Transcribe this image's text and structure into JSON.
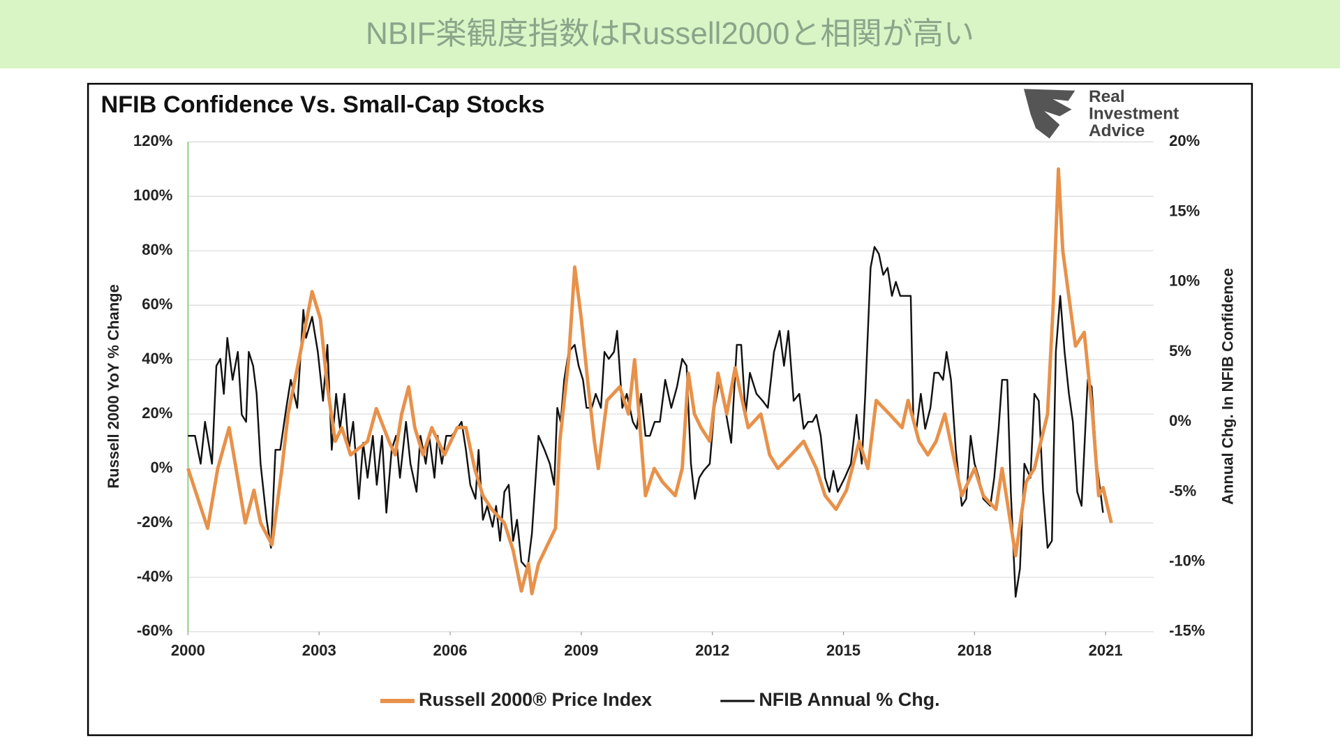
{
  "header": {
    "title": "NBIF楽観度指数はRussell2000と相関が高い"
  },
  "chart_data": {
    "type": "line",
    "title": "NFIB Confidence Vs. Small-Cap Stocks",
    "logo": [
      "Real",
      "Investment",
      "Advice"
    ],
    "y_label": "Russell 2000 YoY % Change",
    "y2_label": "Annual Chg. In NFIB Confidence",
    "xlim": [
      2000,
      2022.1
    ],
    "xticks": [
      2000,
      2003,
      2006,
      2009,
      2012,
      2015,
      2018,
      2021
    ],
    "ylim": [
      -60,
      120
    ],
    "yticks": [
      {
        "value": -60,
        "label": "-60%"
      },
      {
        "value": -40,
        "label": "-40%"
      },
      {
        "value": -20,
        "label": "-20%"
      },
      {
        "value": 0,
        "label": "0%"
      },
      {
        "value": 20,
        "label": "20%"
      },
      {
        "value": 40,
        "label": "40%"
      },
      {
        "value": 60,
        "label": "60%"
      },
      {
        "value": 80,
        "label": "80%"
      },
      {
        "value": 100,
        "label": "100%"
      },
      {
        "value": 120,
        "label": "120%"
      }
    ],
    "y2lim": [
      -15,
      20
    ],
    "y2ticks": [
      {
        "value": -15,
        "label": "-15%"
      },
      {
        "value": -10,
        "label": "-10%"
      },
      {
        "value": -5,
        "label": "-5%"
      },
      {
        "value": 0,
        "label": "0%"
      },
      {
        "value": 5,
        "label": "5%"
      },
      {
        "value": 10,
        "label": "10%"
      },
      {
        "value": 15,
        "label": "15%"
      },
      {
        "value": 20,
        "label": "20%"
      }
    ],
    "grid": true,
    "legend": "bottom",
    "series": [
      {
        "name": "Russell 2000® Price Index",
        "color": "#e8914a",
        "axis": "y",
        "x": [
          2000,
          2000.45,
          2000.68,
          2000.94,
          2001.31,
          2001.51,
          2001.66,
          2001.92,
          2002.15,
          2002.29,
          2002.54,
          2002.84,
          2003.03,
          2003.19,
          2003.37,
          2003.52,
          2003.72,
          2004.11,
          2004.31,
          2004.6,
          2004.74,
          2004.89,
          2005.05,
          2005.19,
          2005.38,
          2005.58,
          2005.87,
          2006.16,
          2006.36,
          2006.56,
          2006.75,
          2006.95,
          2007.24,
          2007.44,
          2007.63,
          2007.79,
          2007.87,
          2008.02,
          2008.32,
          2008.41,
          2008.51,
          2008.71,
          2008.85,
          2009,
          2009.16,
          2009.3,
          2009.39,
          2009.59,
          2009.88,
          2010.08,
          2010.22,
          2010.37,
          2010.47,
          2010.67,
          2010.86,
          2011.15,
          2011.31,
          2011.45,
          2011.59,
          2011.74,
          2011.94,
          2012.13,
          2012.33,
          2012.52,
          2012.82,
          2013.11,
          2013.31,
          2013.5,
          2013.8,
          2014.09,
          2014.38,
          2014.58,
          2014.83,
          2015.07,
          2015.36,
          2015.56,
          2015.75,
          2016.05,
          2016.34,
          2016.48,
          2016.73,
          2016.93,
          2017.12,
          2017.32,
          2017.51,
          2017.71,
          2018,
          2018.2,
          2018.49,
          2018.63,
          2018.94,
          2019.18,
          2019.37,
          2019.67,
          2019.8,
          2019.92,
          2020.02,
          2020.16,
          2020.31,
          2020.51,
          2020.7,
          2020.84,
          2020.94,
          2021.13
        ],
        "values": [
          0,
          -22,
          0,
          15,
          -20,
          -8,
          -20,
          -28,
          0,
          20,
          40,
          65,
          55,
          30,
          10,
          15,
          5,
          10,
          22,
          10,
          5,
          20,
          30,
          15,
          5,
          15,
          5,
          15,
          15,
          0,
          -10,
          -15,
          -20,
          -30,
          -45,
          -35,
          -46,
          -35,
          -25,
          -22,
          10,
          40,
          74,
          55,
          30,
          10,
          0,
          25,
          30,
          20,
          40,
          10,
          -10,
          0,
          -5,
          -10,
          0,
          35,
          20,
          15,
          10,
          35,
          20,
          37,
          15,
          20,
          5,
          0,
          5,
          10,
          0,
          -10,
          -15,
          -8,
          10,
          0,
          25,
          20,
          15,
          25,
          10,
          5,
          10,
          20,
          5,
          -10,
          0,
          -10,
          -15,
          0,
          -32,
          -5,
          0,
          20,
          60,
          110,
          80,
          63,
          45,
          50,
          20,
          -10,
          -7,
          -20
        ]
      },
      {
        "name": "NFIB Annual % Chg.",
        "color": "#111111",
        "axis": "y2",
        "x": [
          2000,
          2000.16,
          2000.29,
          2000.39,
          2000.55,
          2000.65,
          2000.74,
          2000.82,
          2000.9,
          2001.02,
          2001.14,
          2001.23,
          2001.33,
          2001.39,
          2001.49,
          2001.57,
          2001.66,
          2001.8,
          2001.9,
          2002,
          2002.11,
          2002.25,
          2002.35,
          2002.5,
          2002.64,
          2002.7,
          2002.84,
          2002.97,
          2003.09,
          2003.19,
          2003.29,
          2003.39,
          2003.48,
          2003.58,
          2003.68,
          2003.78,
          2003.91,
          2004.01,
          2004.11,
          2004.23,
          2004.32,
          2004.44,
          2004.54,
          2004.66,
          2004.76,
          2004.85,
          2004.99,
          2005.09,
          2005.23,
          2005.32,
          2005.44,
          2005.52,
          2005.64,
          2005.71,
          2005.81,
          2005.91,
          2006.03,
          2006.16,
          2006.26,
          2006.36,
          2006.46,
          2006.58,
          2006.65,
          2006.75,
          2006.85,
          2006.97,
          2007.05,
          2007.14,
          2007.24,
          2007.34,
          2007.44,
          2007.53,
          2007.63,
          2007.77,
          2007.87,
          2008.02,
          2008.16,
          2008.28,
          2008.38,
          2008.45,
          2008.53,
          2008.61,
          2008.71,
          2008.85,
          2008.94,
          2009.04,
          2009.12,
          2009.24,
          2009.33,
          2009.45,
          2009.53,
          2009.63,
          2009.75,
          2009.82,
          2009.94,
          2010.04,
          2010.18,
          2010.27,
          2010.37,
          2010.47,
          2010.57,
          2010.68,
          2010.8,
          2010.92,
          2011.06,
          2011.19,
          2011.31,
          2011.41,
          2011.51,
          2011.6,
          2011.7,
          2011.8,
          2011.94,
          2012.05,
          2012.17,
          2012.29,
          2012.43,
          2012.56,
          2012.66,
          2012.76,
          2012.86,
          2013.01,
          2013.15,
          2013.27,
          2013.41,
          2013.54,
          2013.64,
          2013.74,
          2013.86,
          2013.99,
          2014.09,
          2014.19,
          2014.29,
          2014.38,
          2014.48,
          2014.58,
          2014.68,
          2014.77,
          2014.87,
          2015.03,
          2015.17,
          2015.3,
          2015.42,
          2015.5,
          2015.62,
          2015.71,
          2015.81,
          2015.91,
          2016.01,
          2016.11,
          2016.2,
          2016.3,
          2016.4,
          2016.54,
          2016.6,
          2016.67,
          2016.77,
          2016.87,
          2016.99,
          2017.08,
          2017.18,
          2017.28,
          2017.36,
          2017.46,
          2017.57,
          2017.71,
          2017.81,
          2017.91,
          2018,
          2018.1,
          2018.2,
          2018.36,
          2018.45,
          2018.55,
          2018.63,
          2018.75,
          2018.83,
          2018.94,
          2019.04,
          2019.14,
          2019.28,
          2019.37,
          2019.47,
          2019.57,
          2019.67,
          2019.77,
          2019.86,
          2019.96,
          2020.06,
          2020.16,
          2020.25,
          2020.35,
          2020.45,
          2020.59,
          2020.68,
          2020.8,
          2020.94
        ],
        "values": [
          -1,
          -1,
          -3,
          0,
          -3,
          4,
          4.5,
          2,
          6,
          3,
          5,
          0.5,
          0,
          5,
          4,
          2,
          -3,
          -7,
          -9,
          -2,
          -2,
          1,
          3,
          1,
          8,
          6,
          7.5,
          5,
          1.5,
          5.5,
          -2,
          2,
          -0.5,
          2,
          -2,
          0,
          -5.5,
          -1.5,
          -4,
          -1,
          -4.5,
          -1,
          -6.5,
          -2,
          -1,
          -4,
          0,
          -3,
          -5,
          -1,
          -3,
          -1,
          -4,
          -1,
          -3,
          -1,
          -1,
          -0.5,
          0,
          -2,
          -4.5,
          -5.5,
          -2,
          -7,
          -6,
          -7.5,
          -6,
          -8.5,
          -5,
          -4.5,
          -8.5,
          -7,
          -10,
          -10.5,
          -8,
          -1,
          -2,
          -3,
          -4.5,
          1,
          0,
          3,
          5,
          5.5,
          4,
          3,
          1,
          1,
          2,
          1,
          5,
          4.5,
          5,
          6.5,
          1,
          2,
          0,
          -0.5,
          2,
          -1,
          -1,
          0,
          0,
          3,
          1,
          2.5,
          4.5,
          4,
          -3,
          -5.5,
          -4,
          -3.5,
          -3,
          1,
          3,
          1,
          -1.5,
          5.5,
          5.5,
          0.5,
          3.5,
          2,
          1.5,
          1,
          5,
          6.5,
          4,
          6.5,
          1.5,
          2,
          -0.5,
          0,
          0,
          0.5,
          -1,
          -4,
          -5,
          -3.5,
          -5,
          -4,
          -3,
          0.5,
          -3,
          2,
          11,
          12.5,
          12,
          10.5,
          11,
          9,
          10,
          9,
          9,
          9,
          0,
          -0.5,
          2,
          -0.5,
          1,
          3.5,
          3.5,
          3,
          5,
          3,
          -2,
          -6,
          -5.5,
          -1,
          -3,
          -4,
          -5.5,
          -6,
          -4,
          -0.5,
          3,
          3,
          -5,
          -12.5,
          -10.5,
          -3,
          -4,
          2,
          1.5,
          -5,
          -9,
          -8.5,
          5,
          9,
          5,
          2,
          0,
          -5,
          -6,
          3,
          2.5,
          -3,
          -6.5
        ]
      }
    ]
  }
}
